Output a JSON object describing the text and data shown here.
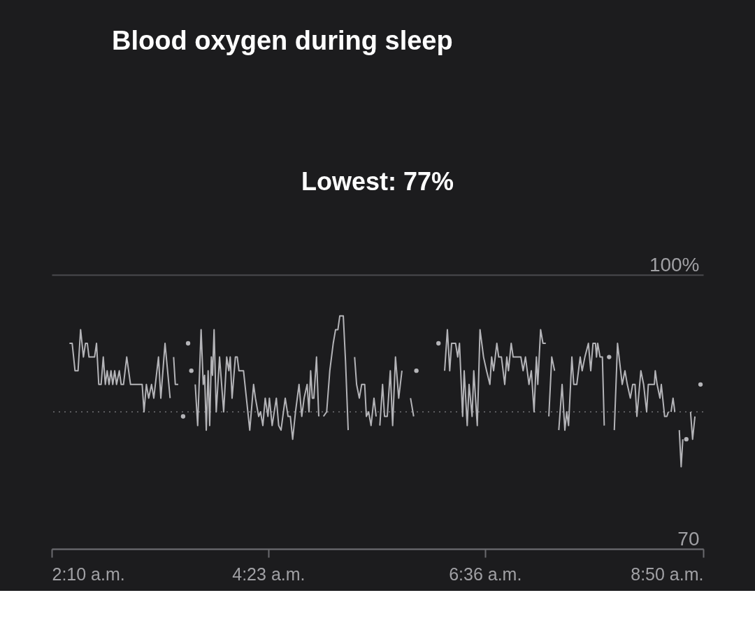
{
  "chart_data": {
    "type": "line",
    "title": "Blood oxygen during sleep",
    "subtitle": "Lowest: 77%",
    "xlim": [
      2.1667,
      8.8333
    ],
    "xticks": [
      {
        "value": 2.1667,
        "label": "2:10 a.m."
      },
      {
        "value": 4.3833,
        "label": "4:23 a.m."
      },
      {
        "value": 6.6,
        "label": "6:36 a.m."
      },
      {
        "value": 8.8333,
        "label": "8:50 a.m."
      }
    ],
    "ylim": [
      70,
      100
    ],
    "yticks": [
      {
        "value": 100,
        "label": "100%"
      },
      70
    ],
    "grid": "y",
    "ref_lines": [
      {
        "axis": "y",
        "value": 85,
        "color": "#5a5a5e",
        "line_style": "dotted"
      }
    ],
    "series": [
      {
        "type": "line",
        "color": "#b4b4b8",
        "marker": "none",
        "line_style": "solid",
        "x": [
          2.348,
          2.376,
          2.405,
          2.436,
          2.462,
          2.491,
          2.512,
          2.531,
          2.548,
          2.605,
          2.625,
          2.648,
          2.672,
          2.694,
          2.715,
          2.734,
          2.753,
          2.773,
          2.791,
          2.811,
          2.83,
          2.858,
          2.877,
          2.901,
          2.934,
          2.973,
          3.092,
          3.111,
          3.135,
          3.159,
          3.188,
          3.211,
          3.259,
          3.283,
          3.326,
          3.378,
          3.396,
          3.414,
          3.431,
          3.461,
          3.55,
          3.635,
          3.66,
          3.695,
          3.717,
          3.731,
          3.748,
          3.767,
          3.783,
          3.8,
          3.812,
          3.828,
          3.85,
          3.884,
          3.926,
          3.957,
          3.979,
          3.993,
          4.012,
          4.046,
          4.065,
          4.082,
          4.129,
          4.193,
          4.232,
          4.251,
          4.284,
          4.303,
          4.327,
          4.351,
          4.379,
          4.394,
          4.422,
          4.465,
          4.489,
          4.513,
          4.556,
          4.585,
          4.608,
          4.632,
          4.661,
          4.697,
          4.725,
          4.749,
          4.78,
          4.799,
          4.816,
          4.833,
          4.849,
          4.876,
          4.899,
          4.923,
          4.947,
          4.98,
          5.012,
          5.047,
          5.071,
          5.095,
          5.114,
          5.15,
          5.173,
          5.2,
          5.233,
          5.266,
          5.286,
          5.314,
          5.338,
          5.369,
          5.386,
          5.409,
          5.434,
          5.464,
          5.486,
          5.505,
          5.524,
          5.552,
          5.572,
          5.6,
          5.631,
          5.655,
          5.684,
          5.717,
          5.75,
          5.794,
          5.838,
          5.87,
          6.03,
          6.187,
          6.215,
          6.239,
          6.258,
          6.299,
          6.321,
          6.339,
          6.371,
          6.387,
          6.418,
          6.437,
          6.468,
          6.485,
          6.521,
          6.549,
          6.585,
          6.616,
          6.65,
          6.668,
          6.688,
          6.721,
          6.74,
          6.768,
          6.802,
          6.823,
          6.84,
          6.868,
          6.888,
          6.967,
          6.99,
          7.014,
          7.05,
          7.074,
          7.102,
          7.126,
          7.14,
          7.169,
          7.193,
          7.222,
          7.237,
          7.253,
          7.283,
          7.312,
          7.333,
          7.355,
          7.389,
          7.417,
          7.436,
          7.455,
          7.489,
          7.508,
          7.539,
          7.574,
          7.594,
          7.622,
          7.658,
          7.682,
          7.705,
          7.73,
          7.741,
          7.753,
          7.777,
          7.801,
          7.82,
          7.87,
          7.923,
          7.956,
          8.004,
          8.032,
          8.056,
          8.087,
          8.111,
          8.135,
          8.154,
          8.195,
          8.223,
          8.254,
          8.271,
          8.333,
          8.342,
          8.361,
          8.39,
          8.404,
          8.438,
          8.461,
          8.476,
          8.49,
          8.504,
          8.524,
          8.542,
          8.565,
          8.588,
          8.607,
          8.624,
          8.66,
          8.703,
          8.724,
          8.748
        ],
        "values": [
          92.5,
          92.5,
          89.5,
          89.5,
          94,
          91,
          92.5,
          92.5,
          91,
          91,
          92.5,
          88,
          88,
          91,
          88,
          89.5,
          88,
          89.5,
          88,
          89.5,
          88,
          89.5,
          88,
          88,
          91,
          88,
          88,
          85,
          88,
          86.5,
          88,
          86.5,
          91,
          86.5,
          92.5,
          86.5,
          null,
          91,
          88,
          88,
          null,
          88,
          83.5,
          94,
          88,
          89,
          83,
          89.5,
          83.5,
          91,
          89,
          94,
          85,
          91,
          85,
          91,
          89.5,
          91,
          86.5,
          91,
          91,
          89.5,
          89.5,
          83,
          88,
          86.5,
          84.5,
          85,
          83.5,
          86.5,
          84.5,
          86.5,
          83.5,
          86.5,
          83.5,
          83,
          86.5,
          84.5,
          84.5,
          82,
          85,
          88,
          84.5,
          86.5,
          88,
          85,
          89.5,
          86.5,
          86.5,
          91,
          84.5,
          null,
          84.5,
          85,
          89.5,
          92.5,
          94,
          94,
          95.5,
          95.5,
          90.5,
          83,
          null,
          91,
          88,
          86.5,
          88,
          88,
          84.5,
          85,
          83.5,
          86.5,
          84.5,
          null,
          83.5,
          88,
          84.5,
          84.5,
          89.5,
          83.5,
          91,
          86.5,
          89.5,
          null,
          86.5,
          84.5,
          null,
          89.5,
          94,
          89.5,
          92.5,
          92.5,
          91,
          92.5,
          84.5,
          89.5,
          83.5,
          88,
          84.5,
          89.5,
          83.5,
          94,
          91,
          89.5,
          88,
          91,
          89.5,
          92.5,
          91,
          91,
          88,
          91,
          89.5,
          92.5,
          91,
          91,
          89.5,
          91,
          88,
          89.5,
          85,
          91,
          88,
          94,
          92.5,
          92.5,
          null,
          84.5,
          91,
          89.5,
          null,
          83,
          88,
          83,
          85,
          83.5,
          91,
          88,
          88,
          91,
          89.5,
          91,
          92.5,
          89.5,
          92.5,
          92.5,
          91,
          92.5,
          91,
          91,
          83.5,
          null,
          83,
          92.5,
          88,
          89.5,
          88,
          86.5,
          88,
          88,
          84.5,
          89.5,
          88,
          85,
          88,
          88,
          89.5,
          88,
          86.5,
          88,
          84.5,
          84.5,
          85,
          null,
          85,
          86.5,
          85,
          null,
          83,
          79,
          82,
          null,
          85,
          82,
          84.5
        ]
      },
      {
        "type": "scatter",
        "color": "#b4b4b8",
        "marker": "circle",
        "x": [
          3.511,
          3.562,
          3.595,
          5.898,
          6.124,
          7.87,
          8.66,
          8.805
        ],
        "values": [
          84.5,
          92.5,
          89.5,
          89.5,
          92.5,
          91,
          82,
          88
        ]
      }
    ]
  }
}
